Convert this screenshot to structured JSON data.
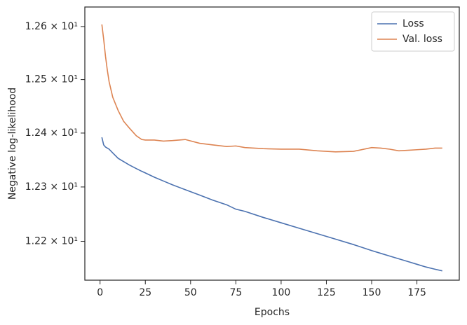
{
  "chart_data": {
    "type": "line",
    "xlabel": "Epochs",
    "ylabel": "Negative log-likelihood",
    "x": [
      1,
      2,
      3,
      4,
      5,
      7,
      10,
      13,
      16,
      20,
      23,
      25,
      30,
      35,
      40,
      47,
      55,
      62,
      70,
      75,
      80,
      90,
      100,
      110,
      120,
      130,
      140,
      150,
      155,
      160,
      165,
      170,
      175,
      180,
      185,
      189
    ],
    "series": [
      {
        "name": "Loss",
        "color": "#4c72b0",
        "values": [
          12.392,
          12.378,
          12.374,
          12.372,
          12.37,
          12.363,
          12.353,
          12.347,
          12.341,
          12.334,
          12.329,
          12.326,
          12.318,
          12.311,
          12.304,
          12.295,
          12.285,
          12.276,
          12.267,
          12.259,
          12.255,
          12.244,
          12.234,
          12.224,
          12.214,
          12.204,
          12.194,
          12.183,
          12.178,
          12.173,
          12.168,
          12.163,
          12.158,
          12.153,
          12.149,
          12.146
        ]
      },
      {
        "name": "Val. loss",
        "color": "#dd8452",
        "values": [
          12.604,
          12.576,
          12.544,
          12.518,
          12.496,
          12.467,
          12.442,
          12.422,
          12.41,
          12.395,
          12.388,
          12.387,
          12.387,
          12.385,
          12.386,
          12.388,
          12.381,
          12.378,
          12.375,
          12.376,
          12.373,
          12.371,
          12.37,
          12.37,
          12.367,
          12.365,
          12.366,
          12.373,
          12.372,
          12.37,
          12.367,
          12.368,
          12.369,
          12.37,
          12.372,
          12.372
        ]
      }
    ],
    "xlim": [
      -8.4,
      198.4
    ],
    "xticks": [
      0,
      25,
      50,
      75,
      100,
      125,
      150,
      175
    ],
    "ylim": [
      12.129,
      12.637
    ],
    "ylog": true,
    "yticks": [
      {
        "value": 12.2,
        "label": "1.22 × 10¹"
      },
      {
        "value": 12.3,
        "label": "1.23 × 10¹"
      },
      {
        "value": 12.4,
        "label": "1.24 × 10¹"
      },
      {
        "value": 12.5,
        "label": "1.25 × 10¹"
      },
      {
        "value": 12.6,
        "label": "1.26 × 10¹"
      }
    ],
    "grid": false,
    "legend": "upper right"
  }
}
